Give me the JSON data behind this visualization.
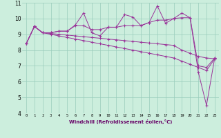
{
  "xlabel": "Windchill (Refroidissement éolien,°C)",
  "bg_color": "#cceedd",
  "line_color": "#993399",
  "grid_color": "#99ccbb",
  "xlim": [
    -0.5,
    23.5
  ],
  "ylim": [
    4,
    11
  ],
  "yticks": [
    4,
    5,
    6,
    7,
    8,
    9,
    10,
    11
  ],
  "xtick_labels": [
    "0",
    "1",
    "2",
    "3",
    "4",
    "5",
    "6",
    "7",
    "8",
    "9",
    "10",
    "11",
    "12",
    "13",
    "14",
    "15",
    "16",
    "17",
    "18",
    "19",
    "20",
    "21",
    "22",
    "23"
  ],
  "series": {
    "line1": {
      "x": [
        0,
        1,
        2,
        3,
        4,
        5,
        6,
        7,
        8,
        9,
        10,
        11,
        12,
        13,
        14,
        15,
        16,
        17,
        18,
        19,
        20,
        21,
        22,
        23
      ],
      "y": [
        8.4,
        9.5,
        9.1,
        9.1,
        9.2,
        9.2,
        9.6,
        10.35,
        9.1,
        8.9,
        9.45,
        9.45,
        10.25,
        10.1,
        9.55,
        9.75,
        10.8,
        9.7,
        10.0,
        10.35,
        10.05,
        6.6,
        4.5,
        7.5
      ]
    },
    "line2": {
      "x": [
        0,
        1,
        2,
        3,
        4,
        5,
        6,
        7,
        8,
        9,
        10,
        11,
        12,
        13,
        14,
        15,
        16,
        17,
        18,
        19,
        20,
        21,
        22,
        23
      ],
      "y": [
        8.4,
        9.5,
        9.1,
        9.1,
        9.2,
        9.2,
        9.55,
        9.55,
        9.3,
        9.3,
        9.45,
        9.45,
        9.55,
        9.55,
        9.55,
        9.75,
        9.9,
        9.9,
        10.0,
        10.05,
        10.05,
        7.0,
        6.9,
        7.5
      ]
    },
    "line3": {
      "x": [
        0,
        1,
        2,
        3,
        4,
        5,
        6,
        7,
        8,
        9,
        10,
        11,
        12,
        13,
        14,
        15,
        16,
        17,
        18,
        19,
        20,
        21,
        22,
        23
      ],
      "y": [
        8.4,
        9.5,
        9.1,
        9.05,
        9.0,
        8.95,
        8.9,
        8.85,
        8.8,
        8.75,
        8.7,
        8.65,
        8.6,
        8.55,
        8.5,
        8.45,
        8.4,
        8.35,
        8.3,
        8.0,
        7.8,
        7.6,
        7.5,
        7.45
      ]
    },
    "line4": {
      "x": [
        0,
        1,
        2,
        3,
        4,
        5,
        6,
        7,
        8,
        9,
        10,
        11,
        12,
        13,
        14,
        15,
        16,
        17,
        18,
        19,
        20,
        21,
        22,
        23
      ],
      "y": [
        8.4,
        9.5,
        9.1,
        9.0,
        8.9,
        8.8,
        8.7,
        8.6,
        8.5,
        8.4,
        8.3,
        8.2,
        8.1,
        8.0,
        7.9,
        7.8,
        7.7,
        7.6,
        7.5,
        7.3,
        7.1,
        6.9,
        6.7,
        7.45
      ]
    }
  }
}
